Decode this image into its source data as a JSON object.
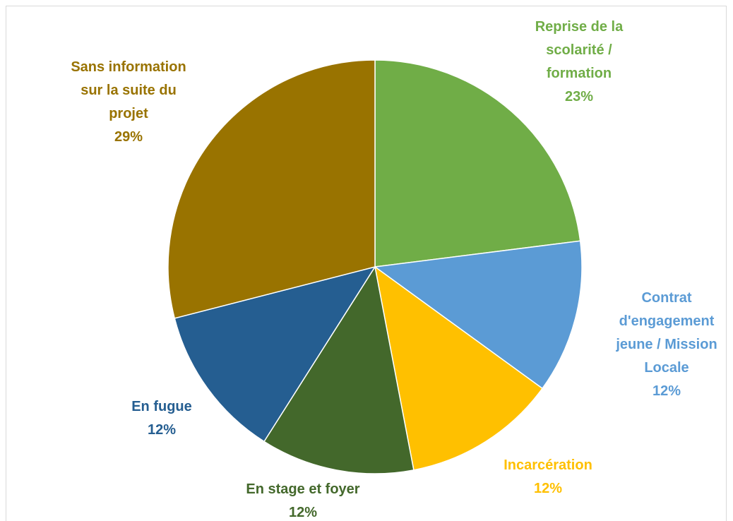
{
  "chart_data": {
    "type": "pie",
    "categories": [
      "Reprise de la scolarité / formation",
      "Contrat d'engagement jeune / Mission Locale",
      "Incarcération",
      "En stage et foyer",
      "En fugue",
      "Sans information sur la suite du projet"
    ],
    "values": [
      23,
      12,
      12,
      12,
      12,
      29
    ],
    "value_labels": [
      "23%",
      "12%",
      "12%",
      "12%",
      "12%",
      "29%"
    ],
    "colors": [
      "#70ad47",
      "#5b9bd5",
      "#ffc000",
      "#43682b",
      "#255e91",
      "#997300"
    ]
  }
}
